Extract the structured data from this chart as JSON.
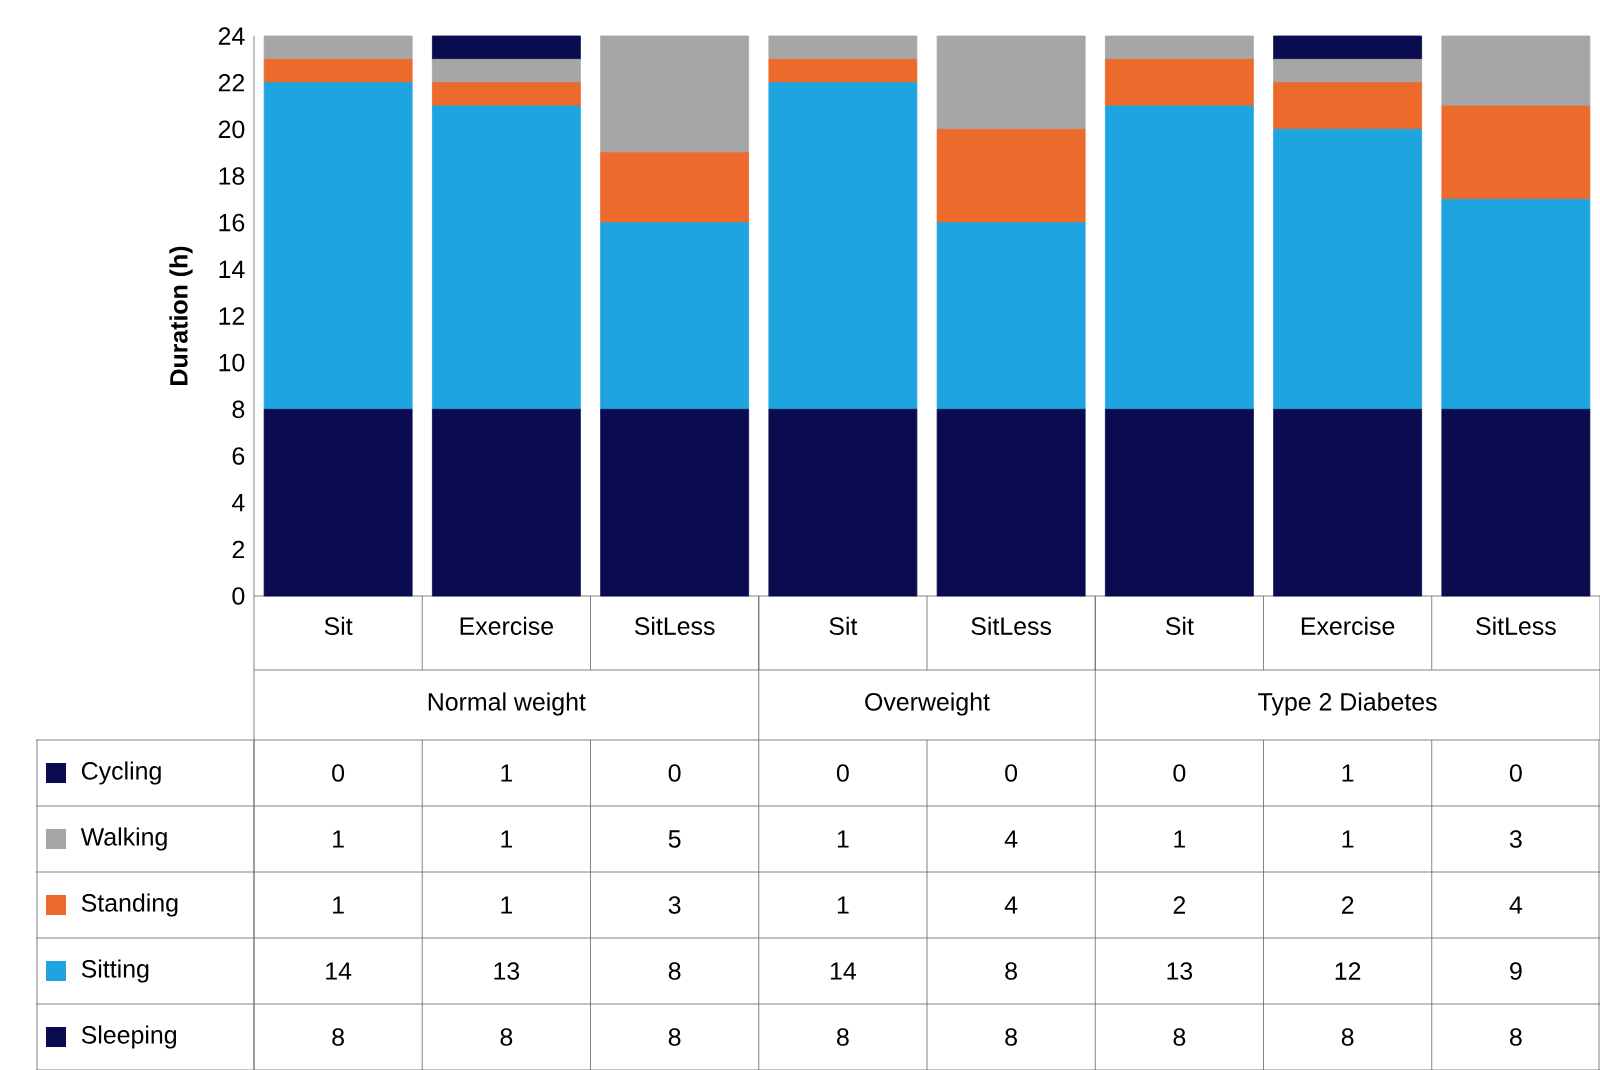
{
  "chart_data": {
    "type": "bar",
    "stacked": true,
    "data_labels": true,
    "ylabel": "Duration (h)",
    "legend": "bottom",
    "categories": [
      "Sit",
      "Exercise",
      "SitLess",
      "Sit",
      "SitLess",
      "Sit",
      "Exercise",
      "SitLess"
    ],
    "annotations": [
      "Normal weight",
      "Overweight",
      "Type 2 Diabetes"
    ],
    "ylim": [
      0,
      24
    ],
    "yticks": [
      0,
      2,
      4,
      6,
      8,
      10,
      12,
      14,
      16,
      18,
      20,
      22,
      24
    ],
    "series": [
      {
        "name": "Sleeping",
        "color": "#0b0b4f",
        "values": [
          8,
          8,
          8,
          8,
          8,
          8,
          8,
          8
        ]
      },
      {
        "name": "Sitting",
        "color": "#1ea5e0",
        "values": [
          14,
          13,
          8,
          14,
          8,
          13,
          12,
          9
        ]
      },
      {
        "name": "Standing",
        "color": "#ec6a2c",
        "values": [
          1,
          1,
          3,
          1,
          4,
          2,
          2,
          4
        ]
      },
      {
        "name": "Walking",
        "color": "#a6a6a6",
        "values": [
          1,
          1,
          5,
          1,
          4,
          1,
          1,
          3
        ]
      },
      {
        "name": "Cycling",
        "color": "#0b0b4f",
        "values": [
          0,
          1,
          0,
          0,
          0,
          0,
          1,
          0
        ]
      }
    ]
  }
}
